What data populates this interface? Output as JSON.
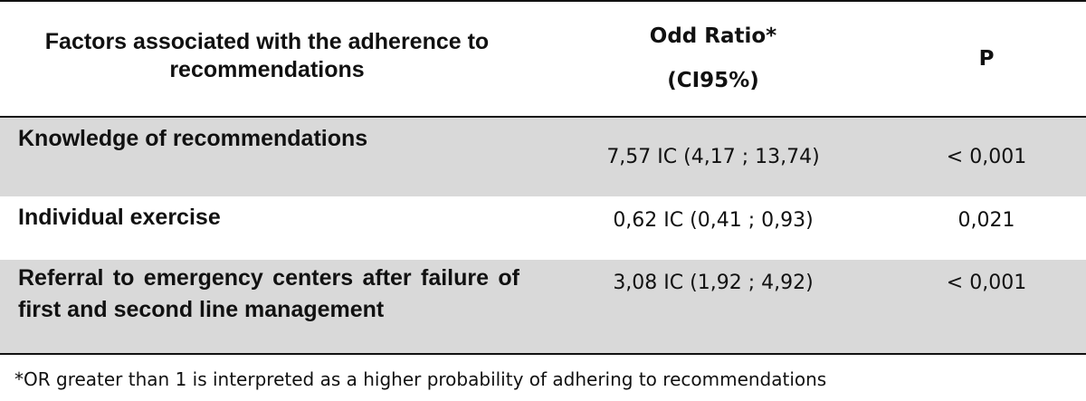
{
  "table": {
    "headers": {
      "factor": "Factors associated with the adherence to recommendations",
      "odd_ratio_line1": "Odd Ratio*",
      "odd_ratio_line2": "(CI95%)",
      "p": "P"
    },
    "rows": [
      {
        "factor": "Knowledge of recommendations",
        "odd_ratio": "7,57 IC (4,17 ; 13,74)",
        "p": "< 0,001"
      },
      {
        "factor": "Individual exercise",
        "odd_ratio": "0,62 IC (0,41 ; 0,93)",
        "p": "0,021"
      },
      {
        "factor": "Referral to emergency centers after failure of first and second line management",
        "odd_ratio": "3,08 IC (1,92 ; 4,92)",
        "p": "< 0,001"
      }
    ],
    "row_shading": "#d9d9d9"
  },
  "footnote": "*OR greater than 1 is interpreted as a higher probability of adhering to recommendations"
}
